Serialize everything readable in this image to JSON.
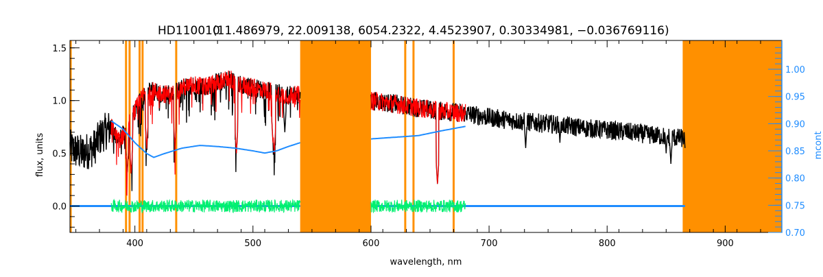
{
  "chart_data": {
    "type": "line",
    "title": "HD110010",
    "subtitle": "(11.486979, 22.009138, 6054.2322, 4.4523907, 0.30334981, −0.036769116)",
    "xlabel": "wavelength, nm",
    "ylabel": "flux, units",
    "y2label": "mcont",
    "xlim": [
      345,
      948
    ],
    "ylim": [
      -0.25,
      1.57
    ],
    "y2lim": [
      0.7,
      1.053
    ],
    "xticks": [
      "400",
      "500",
      "600",
      "700",
      "800",
      "900"
    ],
    "xtick_values": [
      400,
      500,
      600,
      700,
      800,
      900
    ],
    "yticks": [
      "0.0",
      "0.5",
      "1.0",
      "1.5"
    ],
    "ytick_values": [
      0,
      0.5,
      1.0,
      1.5
    ],
    "y2ticks": [
      "0.70",
      "0.75",
      "0.80",
      "0.85",
      "0.90",
      "0.95",
      "1.00"
    ],
    "y2tick_values": [
      0.7,
      0.75,
      0.8,
      0.85,
      0.9,
      0.95,
      1.0
    ],
    "colors": {
      "observed": "#000000",
      "model": "#ff0000",
      "mcont": "#1e8cff",
      "residual": "#00f070",
      "mask": "#ff9000"
    },
    "masked_bands": [
      [
        345,
        346.5
      ],
      [
        540,
        600
      ],
      [
        864,
        948
      ]
    ],
    "masked_lines": [
      392.5,
      395.5,
      404,
      406.5,
      435,
      629,
      636,
      670
    ],
    "series": [
      {
        "name": "observed",
        "axis": "left",
        "noise": 0.09,
        "x": [
          345,
          355,
          365,
          372,
          380,
          386,
          392,
          400,
          410,
          420,
          430,
          440,
          450,
          460,
          470,
          480,
          490,
          500,
          510,
          520,
          530,
          540,
          600,
          620,
          640,
          660,
          680,
          700,
          720,
          740,
          760,
          780,
          800,
          820,
          840,
          866
        ],
        "y": [
          0.55,
          0.5,
          0.55,
          0.68,
          0.75,
          0.62,
          0.7,
          0.9,
          1.1,
          1.08,
          1.05,
          1.12,
          1.15,
          1.13,
          1.18,
          1.2,
          1.15,
          1.12,
          1.1,
          1.07,
          1.05,
          1.05,
          1.0,
          0.97,
          0.93,
          0.9,
          0.88,
          0.84,
          0.81,
          0.79,
          0.77,
          0.74,
          0.72,
          0.7,
          0.67,
          0.64
        ],
        "dips": [
          [
            393.4,
            0.3
          ],
          [
            396.8,
            0.3
          ],
          [
            410,
            0.55
          ],
          [
            434,
            0.55
          ],
          [
            486,
            0.5
          ],
          [
            517,
            0.6
          ],
          [
            518,
            0.5
          ],
          [
            527,
            0.7
          ],
          [
            656.3,
            0.2
          ],
          [
            731,
            0.55
          ],
          [
            760,
            0.6
          ],
          [
            850,
            0.5
          ],
          [
            854,
            0.4
          ],
          [
            866,
            0.55
          ]
        ]
      },
      {
        "name": "model",
        "axis": "left",
        "noise": 0.09,
        "x": [
          380,
          386,
          392,
          400,
          410,
          420,
          430,
          440,
          450,
          460,
          470,
          480,
          490,
          500,
          510,
          520,
          530,
          540,
          600,
          620,
          640,
          660,
          680
        ],
        "y": [
          0.75,
          0.62,
          0.7,
          0.9,
          1.1,
          1.08,
          1.05,
          1.12,
          1.15,
          1.13,
          1.18,
          1.2,
          1.15,
          1.12,
          1.1,
          1.07,
          1.05,
          1.05,
          1.0,
          0.97,
          0.93,
          0.9,
          0.88
        ],
        "dips": [
          [
            393.4,
            0.3
          ],
          [
            396.8,
            0.3
          ],
          [
            410,
            0.55
          ],
          [
            434,
            0.55
          ],
          [
            486,
            0.5
          ],
          [
            517,
            0.6
          ],
          [
            518,
            0.5
          ],
          [
            656.3,
            0.2
          ]
        ]
      },
      {
        "name": "mcont",
        "axis": "right",
        "noise": 0,
        "x": [
          380,
          390,
          400,
          410,
          416,
          425,
          440,
          455,
          470,
          485,
          500,
          510,
          520,
          530,
          540,
          600,
          620,
          640,
          660,
          680
        ],
        "y": [
          0.905,
          0.89,
          0.865,
          0.845,
          0.838,
          0.845,
          0.855,
          0.86,
          0.858,
          0.855,
          0.85,
          0.846,
          0.85,
          0.858,
          0.865,
          0.872,
          0.875,
          0.878,
          0.887,
          0.895
        ]
      },
      {
        "name": "residual",
        "axis": "left",
        "noise": 0.06,
        "x": [
          380,
          540,
          600,
          680
        ],
        "y": [
          0,
          0,
          0,
          0
        ],
        "segments": [
          [
            380,
            540
          ],
          [
            600,
            680
          ]
        ]
      },
      {
        "name": "zero-line",
        "axis": "left",
        "noise": 0,
        "x": [
          345,
          866
        ],
        "y": [
          0,
          0
        ]
      }
    ]
  }
}
